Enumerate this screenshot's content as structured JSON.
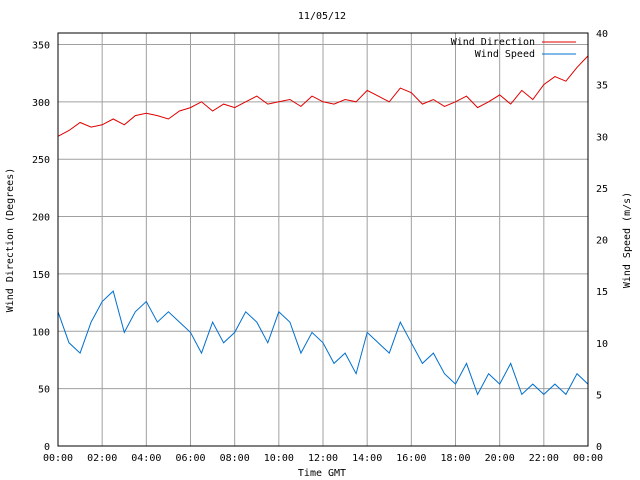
{
  "chart_data": {
    "type": "line",
    "title": "11/05/12",
    "xlabel": "Time GMT",
    "ylabel_left": "Wind Direction (Degrees)",
    "ylabel_right": "Wind Speed (m/s)",
    "x_ticks": [
      "00:00",
      "02:00",
      "04:00",
      "06:00",
      "08:00",
      "10:00",
      "12:00",
      "14:00",
      "16:00",
      "18:00",
      "20:00",
      "22:00",
      "00:00"
    ],
    "y_left_ticks": [
      "0",
      "50",
      "100",
      "150",
      "200",
      "250",
      "300",
      "350"
    ],
    "y_right_ticks": [
      "0",
      "5",
      "10",
      "15",
      "20",
      "25",
      "30",
      "35",
      "40"
    ],
    "y_left_range": [
      0,
      360
    ],
    "y_right_range": [
      0,
      40
    ],
    "grid": true,
    "legend": "top-right",
    "x_hours": [
      0,
      0.5,
      1,
      1.5,
      2,
      2.5,
      3,
      3.5,
      4,
      4.5,
      5,
      5.5,
      6,
      6.5,
      7,
      7.5,
      8,
      8.5,
      9,
      9.5,
      10,
      10.5,
      11,
      11.5,
      12,
      12.5,
      13,
      13.5,
      14,
      14.5,
      15,
      15.5,
      16,
      16.5,
      17,
      17.5,
      18,
      18.5,
      19,
      19.5,
      20,
      20.5,
      21,
      21.5,
      22,
      22.5,
      23,
      23.5,
      24
    ],
    "series": [
      {
        "name": "Wind Direction",
        "axis": "left",
        "color": "#e00000",
        "values": [
          270,
          275,
          282,
          278,
          280,
          285,
          280,
          288,
          290,
          288,
          285,
          292,
          295,
          300,
          292,
          298,
          295,
          300,
          305,
          298,
          300,
          302,
          296,
          305,
          300,
          298,
          302,
          300,
          310,
          305,
          300,
          312,
          308,
          298,
          302,
          296,
          300,
          305,
          295,
          300,
          306,
          298,
          310,
          302,
          315,
          322,
          318,
          330,
          340
        ]
      },
      {
        "name": "Wind Speed",
        "axis": "right",
        "color": "#0070d0",
        "values": [
          13,
          10,
          9,
          12,
          14,
          15,
          11,
          13,
          14,
          12,
          13,
          12,
          11,
          9,
          12,
          10,
          11,
          13,
          12,
          10,
          13,
          12,
          9,
          11,
          10,
          8,
          9,
          7,
          11,
          10,
          9,
          12,
          10,
          8,
          9,
          7,
          6,
          8,
          5,
          7,
          6,
          8,
          5,
          6,
          5,
          6,
          5,
          7,
          6
        ]
      }
    ]
  }
}
